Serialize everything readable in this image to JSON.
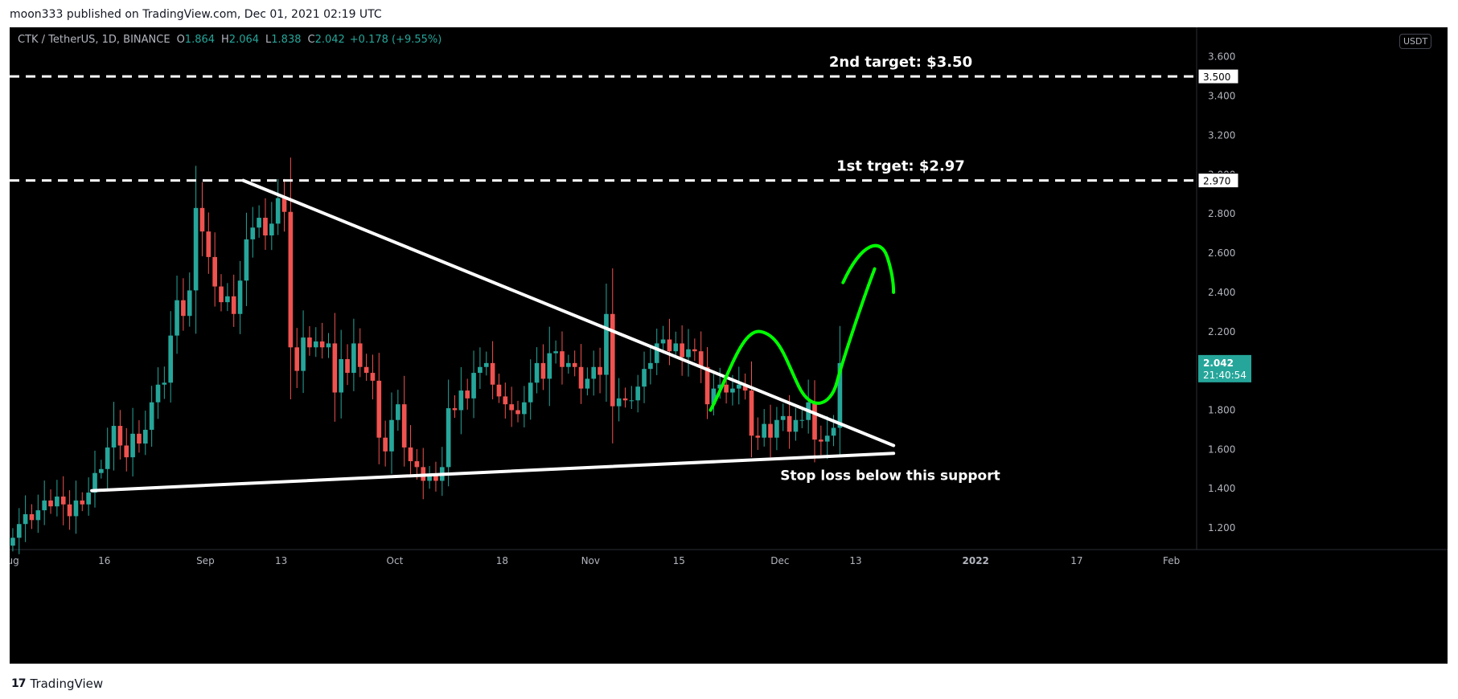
{
  "header": {
    "published": "moon333 published on TradingView.com, Dec 01, 2021 02:19 UTC"
  },
  "footer": {
    "logo": "17",
    "brand": "TradingView"
  },
  "infobar": {
    "symbol": "CTK / TetherUS, 1D, BINANCE",
    "o_label": "O",
    "o": "1.864",
    "h_label": "H",
    "h": "2.064",
    "l_label": "L",
    "l": "1.838",
    "c_label": "C",
    "c": "2.042",
    "change": "+0.178 (+9.55%)"
  },
  "colors": {
    "background": "#000000",
    "up": "#26a69a",
    "down": "#ef5350",
    "annotation": "#ffffff",
    "projection": "#00ff00",
    "axis_text": "#b2b5be",
    "price_tag": "#26a69a"
  },
  "chart_data": {
    "type": "candlestick",
    "ylim": [
      1.09,
      3.75
    ],
    "y_ticks": [
      "1.200",
      "1.400",
      "1.600",
      "1.800",
      "2.000",
      "2.200",
      "2.400",
      "2.600",
      "2.800",
      "3.000",
      "3.200",
      "3.400",
      "3.600"
    ],
    "y_tick_values": [
      1.2,
      1.4,
      1.6,
      1.8,
      2.0,
      2.2,
      2.4,
      2.6,
      2.8,
      3.0,
      3.2,
      3.4,
      3.6
    ],
    "unit": "USDT",
    "x_range": [
      "2021-08-01",
      "2022-02-05"
    ],
    "x_labels": [
      {
        "date": "2021-08-01",
        "label": "Aug"
      },
      {
        "date": "2021-08-16",
        "label": "16"
      },
      {
        "date": "2021-09-01",
        "label": "Sep"
      },
      {
        "date": "2021-09-13",
        "label": "13"
      },
      {
        "date": "2021-10-01",
        "label": "Oct"
      },
      {
        "date": "2021-10-18",
        "label": "18"
      },
      {
        "date": "2021-11-01",
        "label": "Nov"
      },
      {
        "date": "2021-11-15",
        "label": "15"
      },
      {
        "date": "2021-12-01",
        "label": "Dec"
      },
      {
        "date": "2021-12-13",
        "label": "13"
      },
      {
        "date": "2022-01-01",
        "label": "2022"
      },
      {
        "date": "2022-01-17",
        "label": "17"
      },
      {
        "date": "2022-02-01",
        "label": "Feb"
      }
    ],
    "closes": [
      1.15,
      1.22,
      1.27,
      1.24,
      1.29,
      1.34,
      1.31,
      1.36,
      1.32,
      1.26,
      1.34,
      1.32,
      1.38,
      1.48,
      1.5,
      1.61,
      1.72,
      1.62,
      1.56,
      1.68,
      1.63,
      1.7,
      1.84,
      1.93,
      1.94,
      2.18,
      2.36,
      2.28,
      2.41,
      2.83,
      2.71,
      2.58,
      2.43,
      2.35,
      2.38,
      2.29,
      2.46,
      2.67,
      2.73,
      2.78,
      2.69,
      2.75,
      2.88,
      2.81,
      2.12,
      2.0,
      2.17,
      2.12,
      2.15,
      2.12,
      2.14,
      1.89,
      2.06,
      1.99,
      2.14,
      2.02,
      1.99,
      1.95,
      1.66,
      1.59,
      1.75,
      1.83,
      1.61,
      1.54,
      1.51,
      1.44,
      1.47,
      1.44,
      1.51,
      1.81,
      1.8,
      1.9,
      1.86,
      1.99,
      2.02,
      2.04,
      1.93,
      1.87,
      1.83,
      1.8,
      1.78,
      1.84,
      1.94,
      2.04,
      1.96,
      2.09,
      2.1,
      2.02,
      2.04,
      2.02,
      1.91,
      1.96,
      2.02,
      1.98,
      2.29,
      1.82,
      1.86,
      1.85,
      1.85,
      1.92,
      2.01,
      2.04,
      2.14,
      2.16,
      2.1,
      2.14,
      2.07,
      2.11,
      2.1,
      2.02,
      1.83,
      1.91,
      1.93,
      1.89,
      1.91,
      1.93,
      1.9,
      1.67,
      1.66,
      1.73,
      1.66,
      1.75,
      1.77,
      1.69,
      1.75,
      1.75,
      1.84,
      1.65,
      1.64,
      1.67,
      1.71,
      2.04
    ],
    "overlays": {
      "support_line": [
        [
          "2021-08-14",
          1.39
        ],
        [
          "2021-12-19",
          1.58
        ]
      ],
      "resistance_line": [
        [
          "2021-09-07",
          2.97
        ],
        [
          "2021-12-19",
          1.62
        ]
      ],
      "target_lines": [
        {
          "price": 3.5,
          "tag": "3.500",
          "label": "2nd target: $3.50"
        },
        {
          "price": 2.97,
          "tag": "2.970",
          "label": "1st trget: $2.97"
        }
      ],
      "support_note": "Stop loss below this support"
    },
    "last_price": {
      "tag": "2.042",
      "countdown": "21:40:54"
    }
  }
}
